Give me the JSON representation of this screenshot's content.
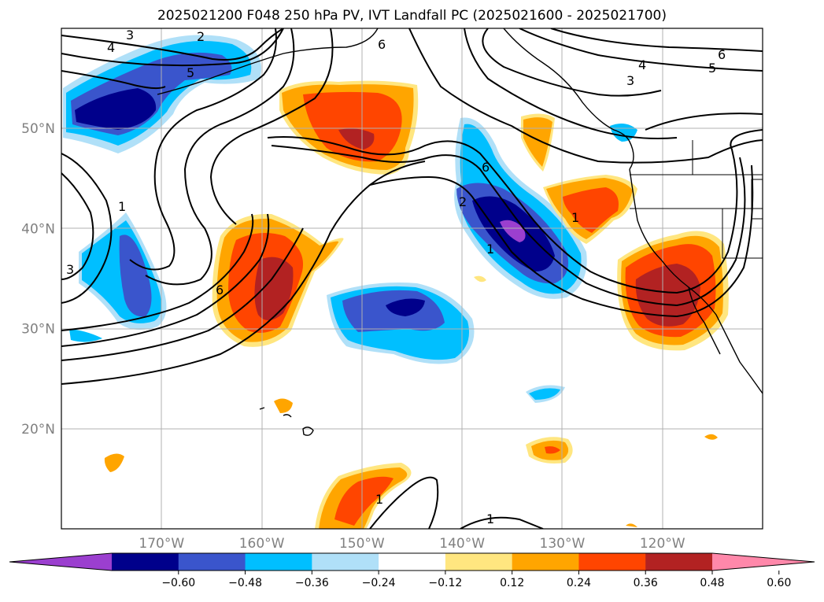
{
  "title": "2025021200 F048 250 hPa PV, IVT Landfall PC (2025021600 - 2025021700)",
  "map": {
    "projection": "PlateCarree",
    "lon_range": [
      -180,
      -110
    ],
    "lat_range": [
      10,
      60
    ],
    "lat_ticks": [
      {
        "value": 20,
        "label": "20°N"
      },
      {
        "value": 30,
        "label": "30°N"
      },
      {
        "value": 40,
        "label": "40°N"
      },
      {
        "value": 50,
        "label": "50°N"
      }
    ],
    "lon_ticks": [
      {
        "value": -170,
        "label": "170°W"
      },
      {
        "value": -160,
        "label": "160°W"
      },
      {
        "value": -150,
        "label": "150°W"
      },
      {
        "value": -140,
        "label": "140°W"
      },
      {
        "value": -130,
        "label": "130°W"
      },
      {
        "value": -120,
        "label": "120°W"
      }
    ],
    "gridlines": true
  },
  "pv_contour_labels": [
    "3",
    "2",
    "4",
    "5",
    "6",
    "1"
  ],
  "colorbar": {
    "orientation": "horizontal",
    "extend": "both",
    "bins": [
      {
        "from": null,
        "to": -0.6,
        "color": "#9b3fcf"
      },
      {
        "from": -0.6,
        "to": -0.48,
        "color": "#00008b"
      },
      {
        "from": -0.48,
        "to": -0.36,
        "color": "#3a55cc"
      },
      {
        "from": -0.36,
        "to": -0.24,
        "color": "#00bfff"
      },
      {
        "from": -0.24,
        "to": -0.12,
        "color": "#b0e0f8"
      },
      {
        "from": -0.12,
        "to": 0.12,
        "color": "#ffffff"
      },
      {
        "from": 0.12,
        "to": 0.24,
        "color": "#ffe680"
      },
      {
        "from": 0.24,
        "to": 0.36,
        "color": "#ffa500"
      },
      {
        "from": 0.36,
        "to": 0.48,
        "color": "#ff4500"
      },
      {
        "from": 0.48,
        "to": 0.6,
        "color": "#b22222"
      },
      {
        "from": 0.6,
        "to": null,
        "color": "#ff88aa"
      }
    ],
    "tick_labels": [
      "−0.60",
      "−0.48",
      "−0.36",
      "−0.24",
      "−0.12",
      "0.12",
      "0.24",
      "0.36",
      "0.48",
      "0.60"
    ]
  }
}
